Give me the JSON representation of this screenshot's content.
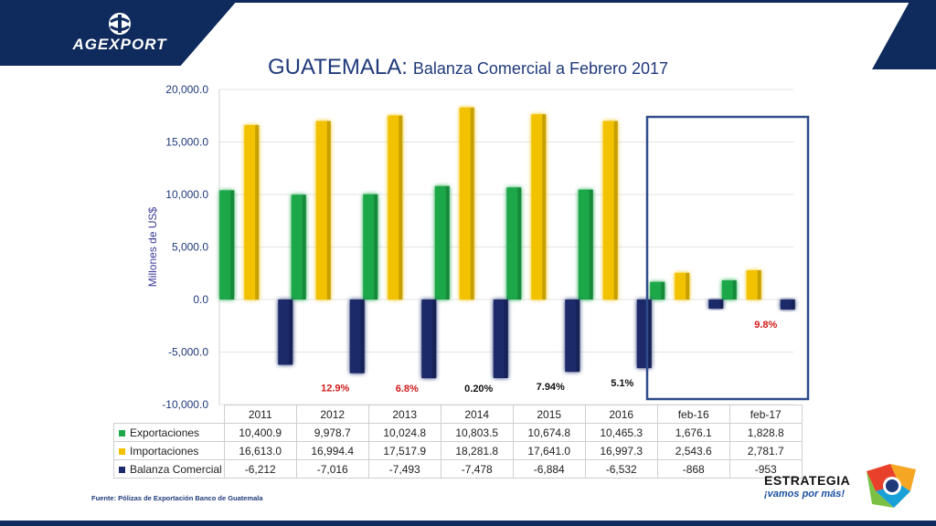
{
  "header": {
    "brand": "AGEXPORT",
    "title": "GUATEMALA:",
    "subtitle": "Balanza Comercial a Febrero 2017"
  },
  "footer": {
    "source": "Fuente: Pólizas de Exportación Banco de Guatemala",
    "partner_name": "ESTRATEGIA",
    "partner_slogan": "¡vamos por más!"
  },
  "colors": {
    "navy": "#0f2a5c",
    "exportaciones": "#1fa84a",
    "importaciones": "#f2c200",
    "balanza": "#1b2a6b",
    "highlight_box": "#2f4d8a",
    "label_red": "#d11a1a"
  },
  "chart_data": {
    "type": "bar",
    "ylabel": "Millones de US$",
    "ylim": [
      -10000,
      20000
    ],
    "yticks": [
      "20,000.0",
      "15,000.0",
      "10,000.0",
      "5,000.0",
      "0.0",
      "-5,000.0",
      "-10,000.0"
    ],
    "ytick_values": [
      20000,
      15000,
      10000,
      5000,
      0,
      -5000,
      -10000
    ],
    "categories": [
      "2011",
      "2012",
      "2013",
      "2014",
      "2015",
      "2016",
      "feb-16",
      "feb-17"
    ],
    "series": [
      {
        "name": "Exportaciones",
        "values": [
          10400.9,
          9978.7,
          10024.8,
          10803.5,
          10674.8,
          10465.3,
          1676.1,
          1828.8
        ],
        "display": [
          "10,400.9",
          "9,978.7",
          "10,024.8",
          "10,803.5",
          "10,674.8",
          "10,465.3",
          "1,676.1",
          "1,828.8"
        ]
      },
      {
        "name": "Importaciones",
        "values": [
          16613.0,
          16994.4,
          17517.9,
          18281.8,
          17641.0,
          16997.3,
          2543.6,
          2781.7
        ],
        "display": [
          "16,613.0",
          "16,994.4",
          "17,517.9",
          "18,281.8",
          "17,641.0",
          "16,997.3",
          "2,543.6",
          "2,781.7"
        ]
      },
      {
        "name": "Balanza Comercial",
        "values": [
          -6212,
          -7016,
          -7493,
          -7478,
          -6884,
          -6532,
          -868,
          -953
        ],
        "display": [
          "-6,212",
          "-7,016",
          "-7,493",
          "-7,478",
          "-6,884",
          "-6,532",
          "-868",
          "-953"
        ]
      }
    ],
    "annotations": [
      {
        "category": "2012",
        "text": "12.9%",
        "color": "red"
      },
      {
        "category": "2013",
        "text": "6.8%",
        "color": "red"
      },
      {
        "category": "2014",
        "text": "0.20%",
        "color": "black"
      },
      {
        "category": "2015",
        "text": "7.94%",
        "color": "black"
      },
      {
        "category": "2016",
        "text": "5.1%",
        "color": "black"
      },
      {
        "category": "feb-17",
        "text": "9.8%",
        "color": "red"
      }
    ],
    "highlighted_categories": [
      "feb-16",
      "feb-17"
    ]
  }
}
